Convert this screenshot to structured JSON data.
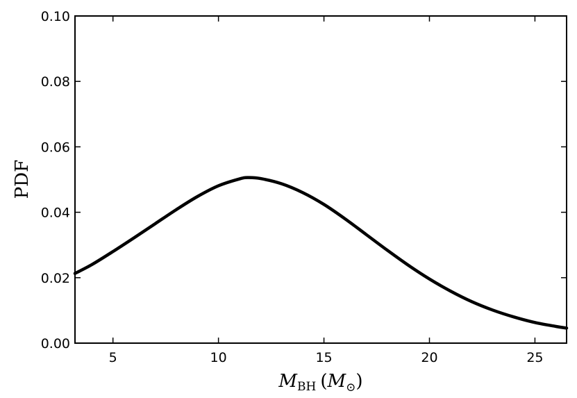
{
  "chart_data": {
    "type": "line",
    "title": "",
    "xlabel": {
      "main": "M",
      "sub": "BH",
      "paren_open": "(",
      "unit": "M",
      "unit_sub": "⊙",
      "paren_close": ")"
    },
    "ylabel": "PDF",
    "xlim": [
      3.2,
      26.5
    ],
    "ylim": [
      0.0,
      0.1
    ],
    "xticks": [
      "5",
      "10",
      "15",
      "20",
      "25"
    ],
    "yticks": [
      "0.00",
      "0.02",
      "0.04",
      "0.06",
      "0.08",
      "0.10"
    ],
    "grid": false,
    "legend": "none",
    "series": [
      {
        "color": "#000000",
        "x": [
          3.2,
          4,
          5,
          6,
          7,
          8,
          9,
          10,
          11,
          11.4,
          12,
          13,
          14,
          15,
          16,
          17,
          18,
          19,
          20,
          21,
          22,
          23,
          24,
          25,
          26,
          26.5
        ],
        "y": [
          0.0213,
          0.024,
          0.028,
          0.0322,
          0.0365,
          0.0408,
          0.0448,
          0.0481,
          0.0502,
          0.0506,
          0.0503,
          0.0487,
          0.046,
          0.0424,
          0.038,
          0.0332,
          0.0284,
          0.0238,
          0.0196,
          0.0159,
          0.0127,
          0.0101,
          0.008,
          0.0063,
          0.0051,
          0.0046
        ]
      }
    ]
  }
}
